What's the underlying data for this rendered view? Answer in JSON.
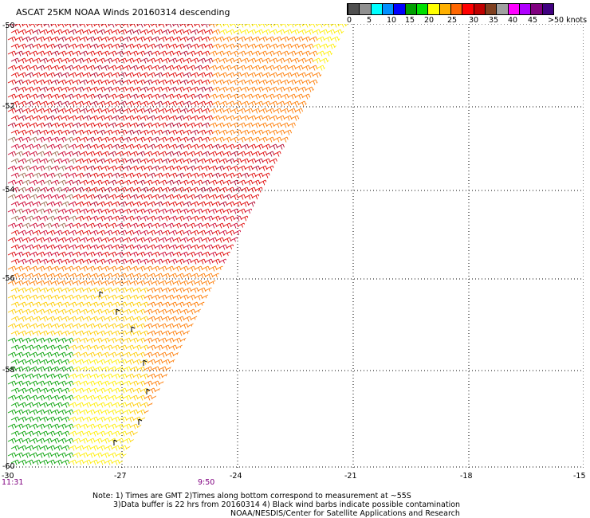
{
  "title": "ASCAT 25KM NOAA Winds 20160314 descending",
  "colorbar": {
    "colors": [
      "#505050",
      "#909090",
      "#00ffff",
      "#0090ff",
      "#0000ff",
      "#00a000",
      "#00e000",
      "#ffff00",
      "#ffb000",
      "#ff6600",
      "#ff0000",
      "#c00000",
      "#804020",
      "#a0a0a0",
      "#ff00ff",
      "#b000ff",
      "#800080",
      "#400080"
    ],
    "labels": [
      "0",
      "5",
      "10",
      "15",
      "20",
      "25",
      "30",
      "35",
      "40",
      "45",
      ">50 knots"
    ]
  },
  "map": {
    "lat_labels": [
      "-50",
      "-52",
      "-54",
      "-56",
      "-58",
      "-60"
    ],
    "lon_labels": [
      "-30",
      "-27",
      "-24",
      "-21",
      "-18",
      "-15"
    ],
    "time_labels": [
      "11:31",
      "9:50"
    ]
  },
  "notes": {
    "line1": "Note: 1) Times are GMT 2)Times along bottom correspond to measurement at ~55S",
    "line2": "3)Data buffer is 22 hrs from 20160314 4) Black wind barbs indicate possible contamination",
    "line3": "NOAA/NESDIS/Center for Satellite Applications and Research"
  }
}
